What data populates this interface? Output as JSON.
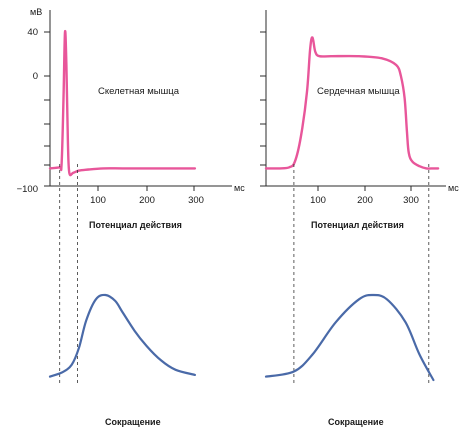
{
  "chart_data": [
    {
      "type": "line",
      "panel": "skeletal",
      "label": "Скелетная мышца",
      "caption_top": "Потенциал действия",
      "caption_bottom": "Сокращение",
      "y_unit": "мВ",
      "x_unit": "мс",
      "y_ticks": [
        "40",
        "0",
        "−100"
      ],
      "x_ticks": [
        "100",
        "200",
        "300"
      ],
      "ylim": [
        -100,
        40
      ],
      "action_potential": {
        "x": [
          0,
          20,
          24,
          28,
          31,
          34,
          37,
          40,
          48,
          60,
          80,
          110,
          150,
          200,
          300
        ],
        "y": [
          -84,
          -83,
          -80,
          -20,
          40,
          10,
          -60,
          -88,
          -88,
          -86,
          -85,
          -84,
          -84,
          -84,
          -84
        ]
      },
      "contraction": {
        "x": [
          0,
          25,
          45,
          60,
          75,
          95,
          115,
          135,
          150,
          175,
          200,
          230,
          260,
          300
        ],
        "y": [
          0.04,
          0.09,
          0.18,
          0.38,
          0.7,
          0.95,
          1.0,
          0.93,
          0.8,
          0.58,
          0.4,
          0.23,
          0.12,
          0.06
        ]
      },
      "guide_x": [
        20,
        57
      ]
    },
    {
      "type": "line",
      "panel": "cardiac",
      "label": "Сердечная мышца",
      "caption_top": "Потенциал действия",
      "caption_bottom": "Сокращение",
      "x_unit": "мс",
      "x_ticks": [
        "100",
        "200",
        "300"
      ],
      "ylim": [
        -100,
        40
      ],
      "action_potential": {
        "x": [
          0,
          30,
          50,
          62,
          75,
          88,
          95,
          100,
          106,
          115,
          140,
          200,
          250,
          280,
          290,
          298,
          303,
          307,
          315,
          330,
          345,
          360,
          370
        ],
        "y": [
          -84,
          -84,
          -83,
          -78,
          -55,
          -15,
          25,
          35,
          22,
          18,
          18,
          18,
          16,
          10,
          0,
          -20,
          -50,
          -70,
          -78,
          -82,
          -84,
          -84,
          -84
        ]
      },
      "contraction": {
        "x": [
          0,
          60,
          100,
          150,
          200,
          230,
          260,
          300,
          330,
          360
        ],
        "y": [
          0.04,
          0.1,
          0.3,
          0.68,
          0.95,
          1.0,
          0.95,
          0.68,
          0.3,
          0.0
        ]
      },
      "guide_x": [
        60,
        350
      ]
    }
  ]
}
